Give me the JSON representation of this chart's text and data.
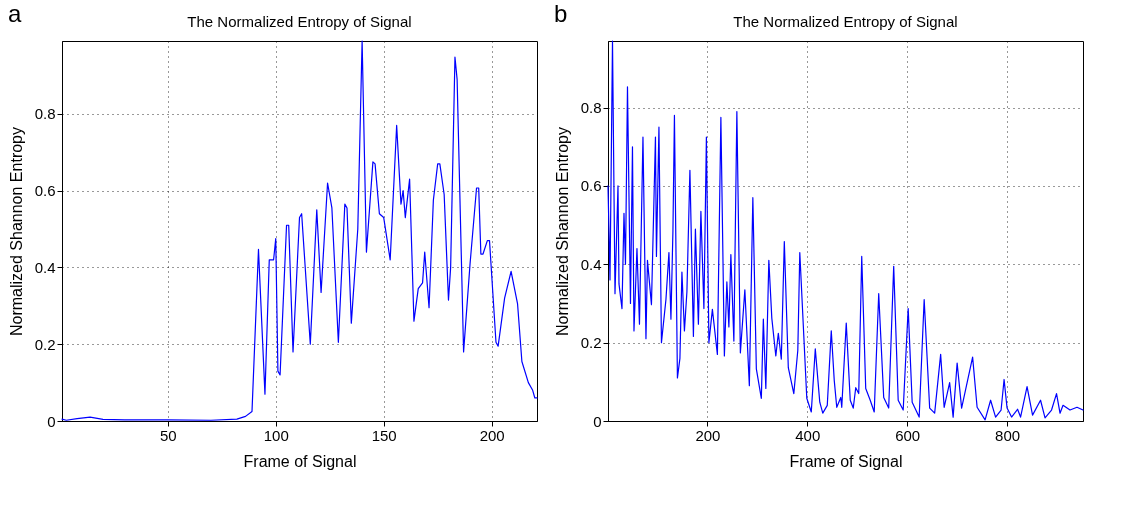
{
  "chart_data": [
    {
      "type": "line",
      "title": "The Normalized Entropy of Signal",
      "xlabel": "Frame of Signal",
      "ylabel": "Normalized Shannon Entropy",
      "annotations": [
        "a"
      ],
      "xlim": [
        1,
        221
      ],
      "xticks": [
        50,
        100,
        150,
        200
      ],
      "ylim": [
        0,
        0.99
      ],
      "yticks": [
        0,
        0.2,
        0.4,
        0.6,
        0.8
      ],
      "grid": true,
      "line_style": "solid",
      "series": [
        {
          "color": "#0000ff",
          "x": [
            1,
            3,
            8,
            14,
            20,
            30,
            50,
            70,
            82,
            86,
            89,
            92,
            95,
            97,
            99,
            100,
            101,
            102,
            105,
            106,
            108,
            111,
            112,
            116,
            119,
            121,
            124,
            126,
            129,
            132,
            133,
            135,
            138,
            140,
            142,
            145,
            146,
            148,
            150,
            153,
            156,
            158,
            159,
            160,
            162,
            164,
            166,
            168,
            169,
            171,
            173,
            175,
            176,
            178,
            180,
            181,
            183,
            184,
            187,
            190,
            193,
            194,
            195,
            196,
            198,
            199,
            202,
            203,
            206,
            209,
            212,
            214,
            217,
            219,
            220,
            221
          ],
          "values": [
            0.005,
            0.002,
            0.006,
            0.01,
            0.004,
            0.003,
            0.003,
            0.002,
            0.005,
            0.012,
            0.025,
            0.447,
            0.07,
            0.42,
            0.42,
            0.475,
            0.13,
            0.12,
            0.51,
            0.51,
            0.18,
            0.53,
            0.54,
            0.2,
            0.55,
            0.335,
            0.62,
            0.555,
            0.205,
            0.565,
            0.555,
            0.255,
            0.5,
            0.99,
            0.44,
            0.675,
            0.67,
            0.54,
            0.53,
            0.42,
            0.77,
            0.565,
            0.6,
            0.53,
            0.63,
            0.26,
            0.345,
            0.36,
            0.44,
            0.295,
            0.575,
            0.67,
            0.67,
            0.59,
            0.315,
            0.4,
            0.948,
            0.89,
            0.18,
            0.41,
            0.607,
            0.607,
            0.435,
            0.435,
            0.47,
            0.47,
            0.205,
            0.195,
            0.32,
            0.39,
            0.305,
            0.155,
            0.1,
            0.08,
            0.06,
            0.06
          ]
        }
      ]
    },
    {
      "type": "line",
      "title": "The Normalized Entropy of Signal",
      "xlabel": "Frame of Signal",
      "ylabel": "Normalized Shannon Entropy",
      "annotations": [
        "b"
      ],
      "xlim": [
        1,
        952
      ],
      "xticks": [
        200,
        400,
        600,
        800
      ],
      "ylim": [
        0,
        0.97
      ],
      "yticks": [
        0,
        0.2,
        0.4,
        0.6,
        0.8
      ],
      "grid": true,
      "line_style": "solid",
      "series": [
        {
          "color": "#0000ff",
          "x": [
            1,
            5,
            10,
            15,
            21,
            23,
            29,
            33,
            36,
            40,
            46,
            50,
            53,
            59,
            64,
            71,
            77,
            80,
            88,
            96,
            98,
            103,
            108,
            117,
            123,
            127,
            131,
            134,
            140,
            145,
            149,
            154,
            159,
            165,
            172,
            176,
            182,
            187,
            193,
            198,
            203,
            210,
            220,
            227,
            234,
            239,
            243,
            247,
            253,
            259,
            266,
            275,
            284,
            291,
            298,
            308,
            312,
            317,
            323,
            329,
            337,
            342,
            348,
            354,
            362,
            373,
            381,
            385,
            399,
            408,
            416,
            425,
            431,
            440,
            448,
            454,
            459,
            467,
            469,
            478,
            486,
            492,
            497,
            503,
            509,
            517,
            526,
            534,
            543,
            553,
            563,
            573,
            582,
            592,
            602,
            610,
            624,
            634,
            645,
            655,
            667,
            674,
            685,
            692,
            700,
            709,
            731,
            740,
            756,
            767,
            777,
            788,
            794,
            800,
            809,
            821,
            827,
            840,
            851,
            867,
            876,
            889,
            899,
            906,
            912,
            926,
            940,
            952
          ],
          "values": [
            0.6,
            0.36,
            0.97,
            0.325,
            0.6,
            0.35,
            0.287,
            0.53,
            0.4,
            0.853,
            0.3,
            0.7,
            0.23,
            0.44,
            0.247,
            0.725,
            0.21,
            0.41,
            0.297,
            0.725,
            0.42,
            0.75,
            0.2,
            0.31,
            0.43,
            0.26,
            0.485,
            0.78,
            0.11,
            0.16,
            0.38,
            0.23,
            0.33,
            0.64,
            0.216,
            0.49,
            0.247,
            0.535,
            0.287,
            0.725,
            0.2,
            0.285,
            0.17,
            0.775,
            0.166,
            0.355,
            0.24,
            0.425,
            0.204,
            0.79,
            0.174,
            0.335,
            0.09,
            0.57,
            0.133,
            0.058,
            0.26,
            0.083,
            0.41,
            0.262,
            0.166,
            0.224,
            0.158,
            0.458,
            0.136,
            0.07,
            0.18,
            0.43,
            0.058,
            0.023,
            0.184,
            0.048,
            0.02,
            0.04,
            0.23,
            0.103,
            0.035,
            0.06,
            0.035,
            0.25,
            0.053,
            0.033,
            0.085,
            0.07,
            0.42,
            0.083,
            0.053,
            0.023,
            0.325,
            0.06,
            0.033,
            0.395,
            0.053,
            0.028,
            0.287,
            0.048,
            0.01,
            0.31,
            0.033,
            0.02,
            0.17,
            0.035,
            0.098,
            0.01,
            0.148,
            0.033,
            0.163,
            0.035,
            0.003,
            0.053,
            0.01,
            0.028,
            0.106,
            0.033,
            0.01,
            0.03,
            0.01,
            0.088,
            0.015,
            0.053,
            0.008,
            0.028,
            0.07,
            0.02,
            0.04,
            0.028,
            0.035,
            0.028
          ]
        }
      ]
    }
  ]
}
